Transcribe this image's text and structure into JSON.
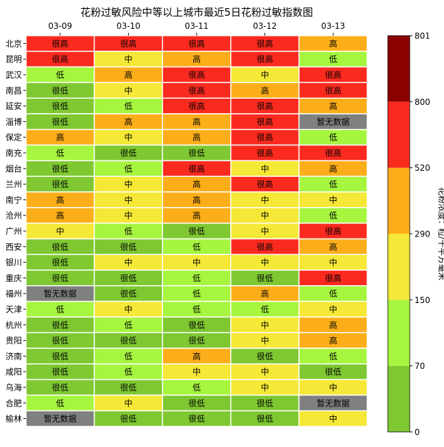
{
  "chart_data": {
    "type": "heatmap",
    "title": "花粉过敏风险中等以上城市最近5日花粉过敏指数图",
    "dates": [
      "03-09",
      "03-10",
      "03-11",
      "03-12",
      "03-13"
    ],
    "cities": [
      "北京",
      "昆明",
      "武汉",
      "南昌",
      "延安",
      "淄博",
      "保定",
      "南充",
      "烟台",
      "兰州",
      "南宁",
      "沧州",
      "广州",
      "西安",
      "银川",
      "重庆",
      "福州",
      "天津",
      "杭州",
      "贵阳",
      "济南",
      "咸阳",
      "乌海",
      "合肥",
      "榆林"
    ],
    "levels": {
      "很低": "#7fc832",
      "低": "#a6f53f",
      "中": "#f5e836",
      "高": "#fcae1a",
      "很高": "#fb2a1f",
      "暂无数据": "#808080"
    },
    "cells": [
      [
        "很高",
        "很高",
        "很高",
        "很高",
        "高"
      ],
      [
        "很高",
        "中",
        "高",
        "很高",
        "低"
      ],
      [
        "低",
        "高",
        "很高",
        "中",
        "很高"
      ],
      [
        "很低",
        "中",
        "很高",
        "高",
        "很高"
      ],
      [
        "很低",
        "低",
        "很高",
        "很高",
        "高"
      ],
      [
        "很低",
        "高",
        "高",
        "很高",
        "暂无数据"
      ],
      [
        "高",
        "中",
        "高",
        "很高",
        "低"
      ],
      [
        "低",
        "很低",
        "很低",
        "很高",
        "很高"
      ],
      [
        "很低",
        "低",
        "很高",
        "中",
        "高"
      ],
      [
        "很低",
        "中",
        "高",
        "很高",
        "低"
      ],
      [
        "高",
        "中",
        "高",
        "中",
        "中"
      ],
      [
        "高",
        "中",
        "高",
        "中",
        "低"
      ],
      [
        "中",
        "低",
        "很低",
        "中",
        "很高"
      ],
      [
        "很低",
        "很低",
        "低",
        "很高",
        "高"
      ],
      [
        "很低",
        "中",
        "中",
        "中",
        "中"
      ],
      [
        "很低",
        "很低",
        "低",
        "很低",
        "很高"
      ],
      [
        "暂无数据",
        "很低",
        "低",
        "高",
        "低"
      ],
      [
        "低",
        "中",
        "低",
        "低",
        "中"
      ],
      [
        "很低",
        "低",
        "很低",
        "中",
        "高"
      ],
      [
        "很低",
        "很低",
        "很低",
        "中",
        "高"
      ],
      [
        "很低",
        "低",
        "高",
        "很低",
        "低"
      ],
      [
        "很低",
        "低",
        "中",
        "中",
        "很低"
      ],
      [
        "很低",
        "很低",
        "低",
        "中",
        "中"
      ],
      [
        "低",
        "中",
        "很低",
        "很低",
        "暂无数据"
      ],
      [
        "暂无数据",
        "很低",
        "很低",
        "很低",
        "中"
      ]
    ],
    "colorbar": {
      "label": "花粉浓度：粒/千平方毫米",
      "ticks": [
        "0",
        "70",
        "150",
        "290",
        "520",
        "800",
        "801"
      ],
      "colors": [
        "#7fc832",
        "#a6f53f",
        "#f5e836",
        "#fcae1a",
        "#fb2a1f",
        "#8b0000"
      ]
    }
  }
}
